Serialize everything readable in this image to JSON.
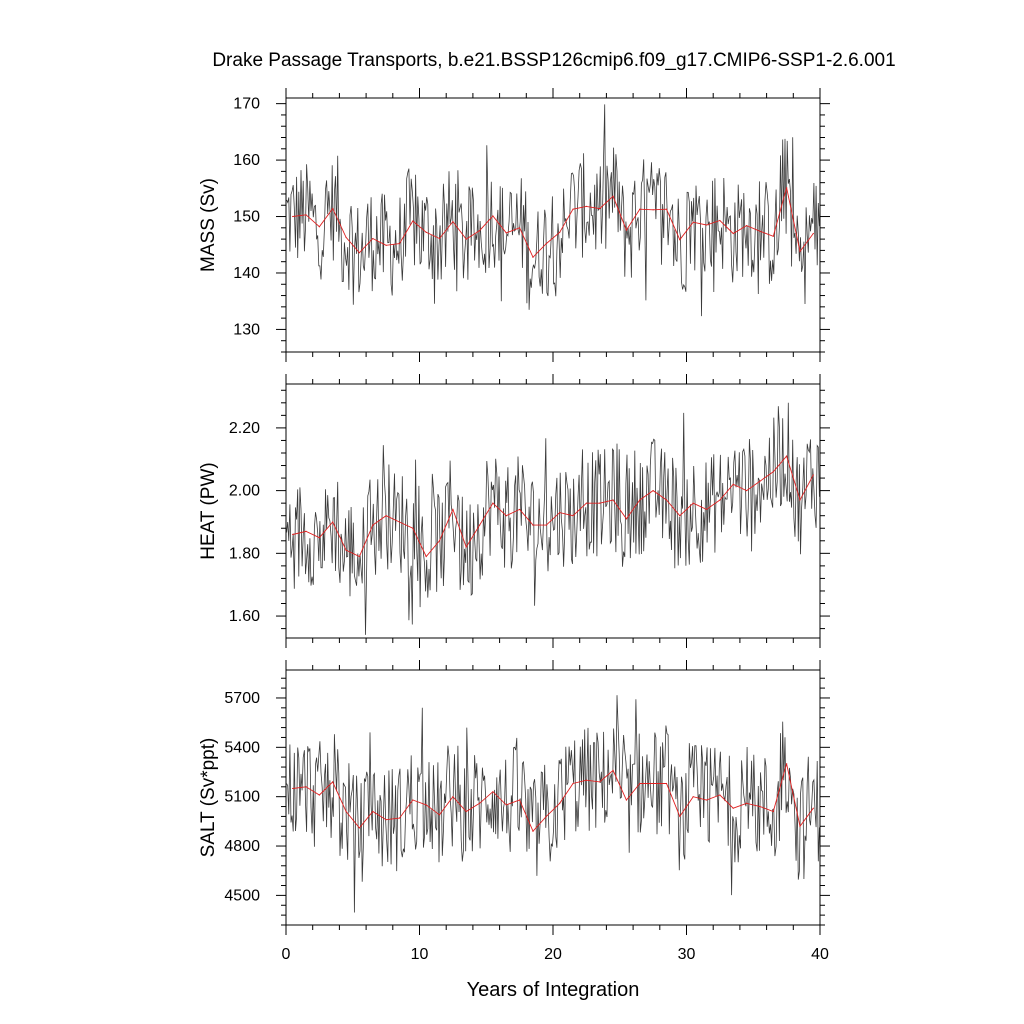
{
  "title": "Drake Passage Transports, b.e21.BSSP126cmip6.f09_g17.CMIP6-SSP1-2.6.001",
  "xlabel": "Years of Integration",
  "colors": {
    "monthly": "#3a3a3a",
    "annual": "#e02020",
    "axis": "#000000"
  },
  "chart_data": [
    {
      "type": "line",
      "ylabel": "MASS (Sv)",
      "xlim": [
        0,
        40
      ],
      "ylim": [
        126,
        171
      ],
      "xticks": [
        0,
        10,
        20,
        30,
        40
      ],
      "yticks": [
        130,
        140,
        150,
        160,
        170
      ],
      "yticklabels": [
        "130",
        "140",
        "150",
        "160",
        "170"
      ],
      "grid": false,
      "series": [
        {
          "x": [
            0.5,
            1.5,
            2.5,
            3.5,
            4.5,
            5.5,
            6.5,
            7.5,
            8.5,
            9.5,
            10.5,
            11.5,
            12.5,
            13.5,
            14.5,
            15.5,
            16.5,
            17.5,
            18.5,
            19.5,
            20.5,
            21.5,
            22.5,
            23.5,
            24.5,
            25.5,
            26.5,
            27.5,
            28.5,
            29.5,
            30.5,
            31.5,
            32.5,
            33.5,
            34.5,
            35.5,
            36.5,
            37.5,
            38.5,
            39.5
          ],
          "values": [
            150,
            150.3,
            148.2,
            151.4,
            146.3,
            143.6,
            146.1,
            144.9,
            145.2,
            149.2,
            147.2,
            146.1,
            149.1,
            146.0,
            147.5,
            150.1,
            147.1,
            148.0,
            142.8,
            145.2,
            147.2,
            151.3,
            151.8,
            151.4,
            153.6,
            147.6,
            151.3,
            151.2,
            151.3,
            145.9,
            149.0,
            148.5,
            149.3,
            147.0,
            148.4,
            147.4,
            146.5,
            155.1,
            143.8,
            147.0
          ]
        }
      ],
      "monthly_band": {
        "min": 127,
        "max": 170
      }
    },
    {
      "type": "line",
      "ylabel": "HEAT (PW)",
      "xlim": [
        0,
        40
      ],
      "ylim": [
        1.53,
        2.34
      ],
      "xticks": [
        0,
        10,
        20,
        30,
        40
      ],
      "yticks": [
        1.6,
        1.8,
        2.0,
        2.2
      ],
      "yticklabels": [
        "1.60",
        "1.80",
        "2.00",
        "2.20"
      ],
      "grid": false,
      "series": [
        {
          "x": [
            0.5,
            1.5,
            2.5,
            3.5,
            4.5,
            5.5,
            6.5,
            7.5,
            8.5,
            9.5,
            10.5,
            11.5,
            12.5,
            13.5,
            14.5,
            15.5,
            16.5,
            17.5,
            18.5,
            19.5,
            20.5,
            21.5,
            22.5,
            23.5,
            24.5,
            25.5,
            26.5,
            27.5,
            28.5,
            29.5,
            30.5,
            31.5,
            32.5,
            33.5,
            34.5,
            35.5,
            36.5,
            37.5,
            38.5,
            39.5
          ],
          "values": [
            1.86,
            1.87,
            1.85,
            1.9,
            1.81,
            1.79,
            1.89,
            1.92,
            1.9,
            1.88,
            1.79,
            1.84,
            1.94,
            1.82,
            1.89,
            1.96,
            1.92,
            1.94,
            1.89,
            1.89,
            1.93,
            1.92,
            1.96,
            1.96,
            1.97,
            1.91,
            1.97,
            2.0,
            1.97,
            1.92,
            1.96,
            1.94,
            1.97,
            2.02,
            2.0,
            2.03,
            2.06,
            2.11,
            1.97,
            2.05
          ]
        }
      ],
      "monthly_band": {
        "min": 1.54,
        "max": 2.33
      }
    },
    {
      "type": "line",
      "ylabel": "SALT (Sv*ppt)",
      "xlim": [
        0,
        40
      ],
      "ylim": [
        4320,
        5870
      ],
      "xticks": [
        0,
        10,
        20,
        30,
        40
      ],
      "yticks": [
        4500,
        4800,
        5100,
        5400,
        5700
      ],
      "yticklabels": [
        "4500",
        "4800",
        "5100",
        "5400",
        "5700"
      ],
      "grid": false,
      "series": [
        {
          "x": [
            0.5,
            1.5,
            2.5,
            3.5,
            4.5,
            5.5,
            6.5,
            7.5,
            8.5,
            9.5,
            10.5,
            11.5,
            12.5,
            13.5,
            14.5,
            15.5,
            16.5,
            17.5,
            18.5,
            19.5,
            20.5,
            21.5,
            22.5,
            23.5,
            24.5,
            25.5,
            26.5,
            27.5,
            28.5,
            29.5,
            30.5,
            31.5,
            32.5,
            33.5,
            34.5,
            35.5,
            36.5,
            37.5,
            38.5,
            39.5
          ],
          "values": [
            5150,
            5160,
            5110,
            5190,
            5010,
            4910,
            5010,
            4960,
            4970,
            5080,
            5050,
            4990,
            5100,
            5010,
            5060,
            5130,
            5050,
            5080,
            4890,
            4980,
            5060,
            5180,
            5200,
            5190,
            5260,
            5080,
            5180,
            5180,
            5180,
            4980,
            5100,
            5080,
            5110,
            5030,
            5060,
            5040,
            5010,
            5300,
            4920,
            5030
          ]
        }
      ],
      "monthly_band": {
        "min": 4330,
        "max": 5840
      }
    }
  ]
}
